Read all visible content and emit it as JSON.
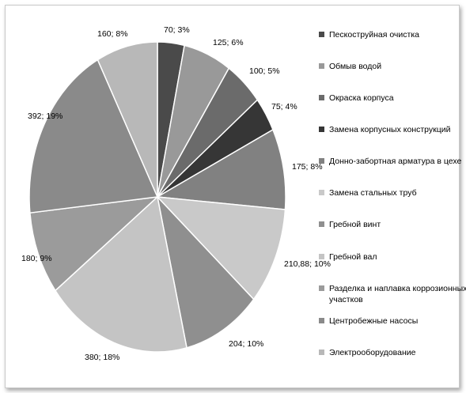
{
  "chart_data": {
    "type": "pie",
    "title": "",
    "slices": [
      {
        "name": "Пескоструйная очистка",
        "value": 70,
        "label": "70; 3%",
        "color": "#4a4a4a"
      },
      {
        "name": "Обмыв водой",
        "value": 125,
        "label": "125; 6%",
        "color": "#999999"
      },
      {
        "name": "Окраска корпуса",
        "value": 100,
        "label": "100; 5%",
        "color": "#6b6b6b"
      },
      {
        "name": "Замена корпусных конструкций",
        "value": 75,
        "label": "75; 4%",
        "color": "#363636"
      },
      {
        "name": "Донно-забортная арматура в цехе",
        "value": 175,
        "label": "175; 8%",
        "color": "#818181"
      },
      {
        "name": "Замена стальных труб",
        "value": 210.88,
        "label": "210,88; 10%",
        "color": "#c9c9c9"
      },
      {
        "name": "Гребной винт",
        "value": 204,
        "label": "204; 10%",
        "color": "#8f8f8f"
      },
      {
        "name": "Гребной вал",
        "value": 380,
        "label": "380; 18%",
        "color": "#c4c4c4"
      },
      {
        "name": "Разделка и наплавка коррозионных участков",
        "value": 180,
        "label": "180; 9%",
        "color": "#9b9b9b"
      },
      {
        "name": "Центробежные насосы",
        "value": 392,
        "label": "392; 19%",
        "color": "#8a8a8a"
      },
      {
        "name": "Электрооборудование",
        "value": 160,
        "label": "160; 8%",
        "color": "#b8b8b8"
      }
    ],
    "legend": "right"
  }
}
